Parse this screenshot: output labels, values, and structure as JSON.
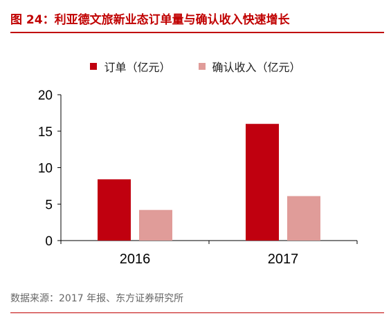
{
  "header": {
    "title": "图 24：利亚德文旅新业态订单量与确认收入快速增长"
  },
  "footer": {
    "source": "数据来源：2017 年报、东方证券研究所"
  },
  "chart_data": {
    "type": "bar",
    "categories": [
      "2016",
      "2017"
    ],
    "series": [
      {
        "name": "订单（亿元）",
        "values": [
          8.4,
          16.0
        ],
        "color": "#c0000f"
      },
      {
        "name": "确认收入（亿元）",
        "values": [
          4.2,
          6.1
        ],
        "color": "#e09c99"
      }
    ],
    "ylim": [
      0,
      20
    ],
    "yticks": [
      "0",
      "5",
      "10",
      "15",
      "20"
    ],
    "legend_position": "top-center",
    "grid": false
  }
}
